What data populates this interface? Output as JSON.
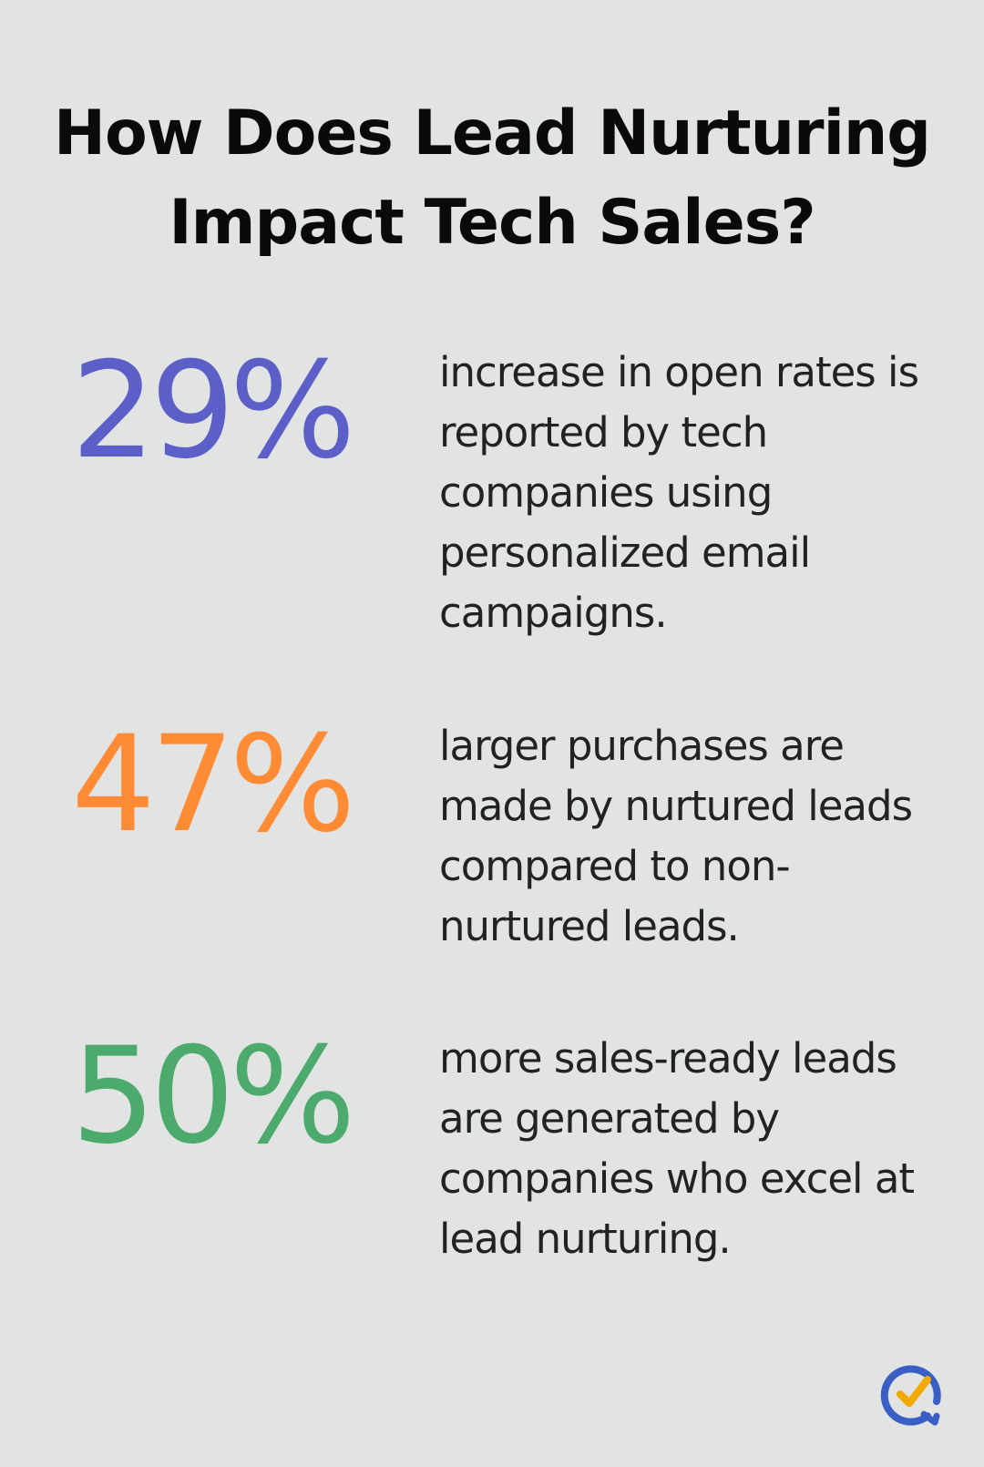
{
  "title": "How Does Lead Nurturing Impact Tech Sales?",
  "colors": {
    "background": "#e2e3e3",
    "stat_1": "#5b5fc7",
    "stat_2": "#ff8c34",
    "stat_3": "#4caa6c",
    "logo_blue": "#3a5fc4",
    "logo_check": "#f2a900"
  },
  "stats": [
    {
      "value": "29%",
      "description": "increase in open rates is reported by tech companies using personalized email campaigns."
    },
    {
      "value": "47%",
      "description": "larger purchases are made by nurtured leads compared to non-nurtured leads."
    },
    {
      "value": "50%",
      "description": "more sales-ready leads are generated by companies who excel at lead nurturing."
    }
  ],
  "logo": {
    "icon": "speech-bubble-checkmark-icon"
  }
}
